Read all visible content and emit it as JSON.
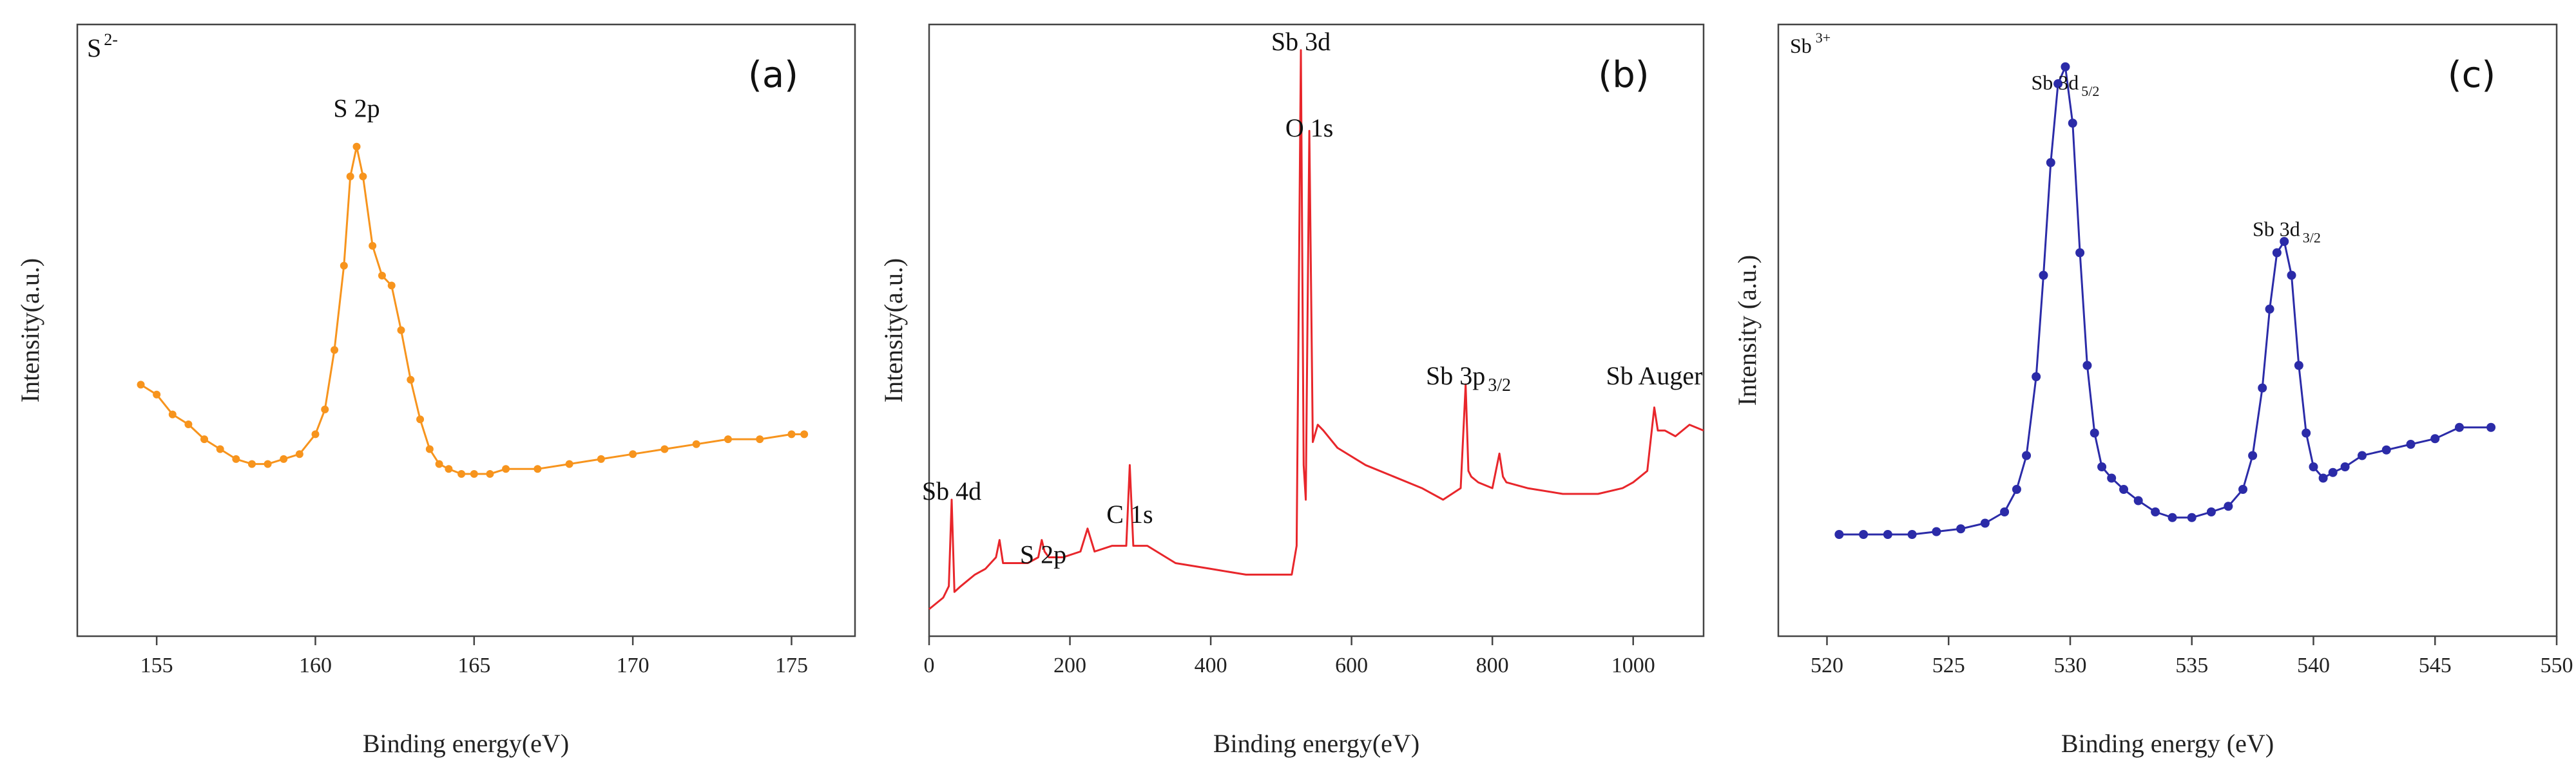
{
  "figure": {
    "xlabel_a": "Binding energy(eV)",
    "xlabel_b": "Binding energy(eV)",
    "xlabel_c": "Binding energy (eV)"
  },
  "chart_data": [
    {
      "type": "line",
      "panel_label": "(a)",
      "species": "S",
      "species_sup": "2-",
      "xlabel": "Binding energy(eV)",
      "ylabel": "Intensity(a.u.)",
      "xlim": [
        152.5,
        177
      ],
      "ylim": [
        0,
        100
      ],
      "xticks": [
        155,
        160,
        165,
        170,
        175
      ],
      "color": "#f7941d",
      "marker": "dot",
      "annotations": [
        {
          "text": "S 2p",
          "x": 161.3,
          "y": 92
        }
      ],
      "x": [
        154.5,
        155.0,
        155.5,
        156.0,
        156.5,
        157.0,
        157.5,
        158.0,
        158.5,
        159.0,
        159.5,
        160.0,
        160.3,
        160.6,
        160.9,
        161.1,
        161.3,
        161.5,
        161.8,
        162.1,
        162.4,
        162.7,
        163.0,
        163.3,
        163.6,
        163.9,
        164.2,
        164.6,
        165.0,
        165.5,
        166.0,
        167.0,
        168.0,
        169.0,
        170.0,
        171.0,
        172.0,
        173.0,
        174.0,
        175.0,
        175.4
      ],
      "y": [
        38,
        36,
        32,
        30,
        27,
        25,
        23,
        22,
        22,
        23,
        24,
        28,
        33,
        45,
        62,
        80,
        86,
        80,
        66,
        60,
        58,
        49,
        39,
        31,
        25,
        22,
        21,
        20,
        20,
        20,
        21,
        21,
        22,
        23,
        24,
        25,
        26,
        27,
        27,
        28,
        28
      ]
    },
    {
      "type": "line",
      "panel_label": "(b)",
      "xlabel": "Binding energy(eV)",
      "ylabel": "Intensity(a.u.)",
      "xlim": [
        0,
        1100
      ],
      "ylim": [
        0,
        100
      ],
      "xticks": [
        0,
        200,
        400,
        600,
        800,
        1000
      ],
      "color": "#e8262b",
      "marker": "none",
      "annotations": [
        {
          "text": "Sb 3d",
          "x": 528,
          "y": 98
        },
        {
          "text": "O 1s",
          "x": 540,
          "y": 83
        },
        {
          "text": "Sb 3p",
          "sub": "3/2",
          "x": 766,
          "y": 40
        },
        {
          "text": "Sb Auger",
          "x": 1030,
          "y": 40
        },
        {
          "text": "Sb 4d",
          "x": 32,
          "y": 20
        },
        {
          "text": "S 2p",
          "x": 162,
          "y": 9
        },
        {
          "text": "C 1s",
          "x": 285,
          "y": 16
        }
      ],
      "x": [
        0,
        10,
        20,
        28,
        32,
        36,
        45,
        55,
        65,
        80,
        95,
        100,
        105,
        120,
        140,
        155,
        160,
        164,
        170,
        190,
        215,
        225,
        235,
        260,
        280,
        285,
        290,
        310,
        350,
        400,
        450,
        500,
        515,
        522,
        528,
        532,
        535,
        540,
        545,
        552,
        560,
        580,
        620,
        660,
        700,
        730,
        755,
        762,
        766,
        770,
        780,
        800,
        810,
        815,
        820,
        850,
        900,
        950,
        985,
        1000,
        1020,
        1030,
        1035,
        1045,
        1060,
        1080,
        1100
      ],
      "y": [
        1,
        2,
        3,
        5,
        20,
        4,
        5,
        6,
        7,
        8,
        10,
        13,
        9,
        9,
        9,
        10,
        13,
        11,
        10,
        10,
        11,
        15,
        11,
        12,
        12,
        26,
        12,
        12,
        9,
        8,
        7,
        7,
        7,
        12,
        98,
        26,
        20,
        84,
        30,
        33,
        32,
        29,
        26,
        24,
        22,
        20,
        22,
        40,
        25,
        24,
        23,
        22,
        28,
        24,
        23,
        22,
        21,
        21,
        22,
        23,
        25,
        36,
        32,
        32,
        31,
        33,
        32
      ]
    },
    {
      "type": "scatter",
      "panel_label": "(c)",
      "species": "Sb",
      "species_sup": "3+",
      "xlabel": "Binding energy (eV)",
      "ylabel": "Intensity (a.u.)",
      "xlim": [
        518,
        550
      ],
      "ylim": [
        0,
        100
      ],
      "xticks": [
        520,
        525,
        530,
        535,
        540,
        545,
        550
      ],
      "color": "#2b2ba8",
      "marker": "circle",
      "annotations": [
        {
          "text": "Sb 3d",
          "sub": "5/2",
          "x": 529.8,
          "y": 91
        },
        {
          "text": "Sb 3d",
          "sub": "3/2",
          "x": 538.9,
          "y": 65
        }
      ],
      "x": [
        520.5,
        521.5,
        522.5,
        523.5,
        524.5,
        525.5,
        526.5,
        527.3,
        527.8,
        528.2,
        528.6,
        528.9,
        529.2,
        529.5,
        529.8,
        530.1,
        530.4,
        530.7,
        531.0,
        531.3,
        531.7,
        532.2,
        532.8,
        533.5,
        534.2,
        535.0,
        535.8,
        536.5,
        537.1,
        537.5,
        537.9,
        538.2,
        538.5,
        538.8,
        539.1,
        539.4,
        539.7,
        540.0,
        540.4,
        540.8,
        541.3,
        542.0,
        543.0,
        544.0,
        545.0,
        546.0,
        547.3
      ],
      "y": [
        12,
        12,
        12,
        12,
        12.5,
        13,
        14,
        16,
        20,
        26,
        40,
        58,
        78,
        92,
        95,
        85,
        62,
        42,
        30,
        24,
        22,
        20,
        18,
        16,
        15,
        15,
        16,
        17,
        20,
        26,
        38,
        52,
        62,
        64,
        58,
        42,
        30,
        24,
        22,
        23,
        24,
        26,
        27,
        28,
        29,
        31,
        31
      ]
    }
  ]
}
